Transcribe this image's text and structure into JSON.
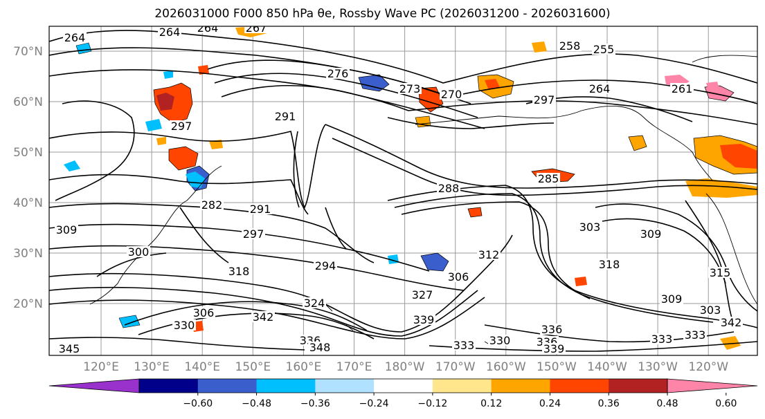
{
  "title": "2026031000 F000 850 hPa θe, Rossby Wave PC (2026031200 - 2026031600)",
  "lat_labels": [
    "70°N",
    "60°N",
    "50°N",
    "40°N",
    "30°N",
    "20°N"
  ],
  "lon_labels": [
    "120°E",
    "130°E",
    "140°E",
    "150°E",
    "160°E",
    "170°E",
    "180°W",
    "170°W",
    "160°W",
    "150°W",
    "140°W",
    "130°W",
    "120°W"
  ],
  "contour_labels": [
    "264",
    "264",
    "267",
    "258",
    "255",
    "264",
    "261",
    "276",
    "273",
    "270",
    "291",
    "297",
    "288",
    "285",
    "282",
    "291",
    "297",
    "303",
    "309",
    "309",
    "300",
    "294",
    "312",
    "318",
    "315",
    "306",
    "327",
    "324",
    "318",
    "309",
    "303",
    "306",
    "330",
    "342",
    "345",
    "339",
    "336",
    "333",
    "333",
    "330",
    "336",
    "339",
    "342",
    "333",
    "336",
    "348",
    "264",
    "297"
  ],
  "colorbar": {
    "ticks": [
      "−0.60",
      "−0.48",
      "−0.36",
      "−0.24",
      "−0.12",
      "0.12",
      "0.24",
      "0.36",
      "0.48",
      "0.60"
    ],
    "colors": [
      "#9932cc",
      "#00008b",
      "#3a5fcd",
      "#00bfff",
      "#b0e2ff",
      "#ffffff",
      "#ffe68c",
      "#ffa500",
      "#ff4500",
      "#b22222",
      "#ff85a8"
    ]
  }
}
